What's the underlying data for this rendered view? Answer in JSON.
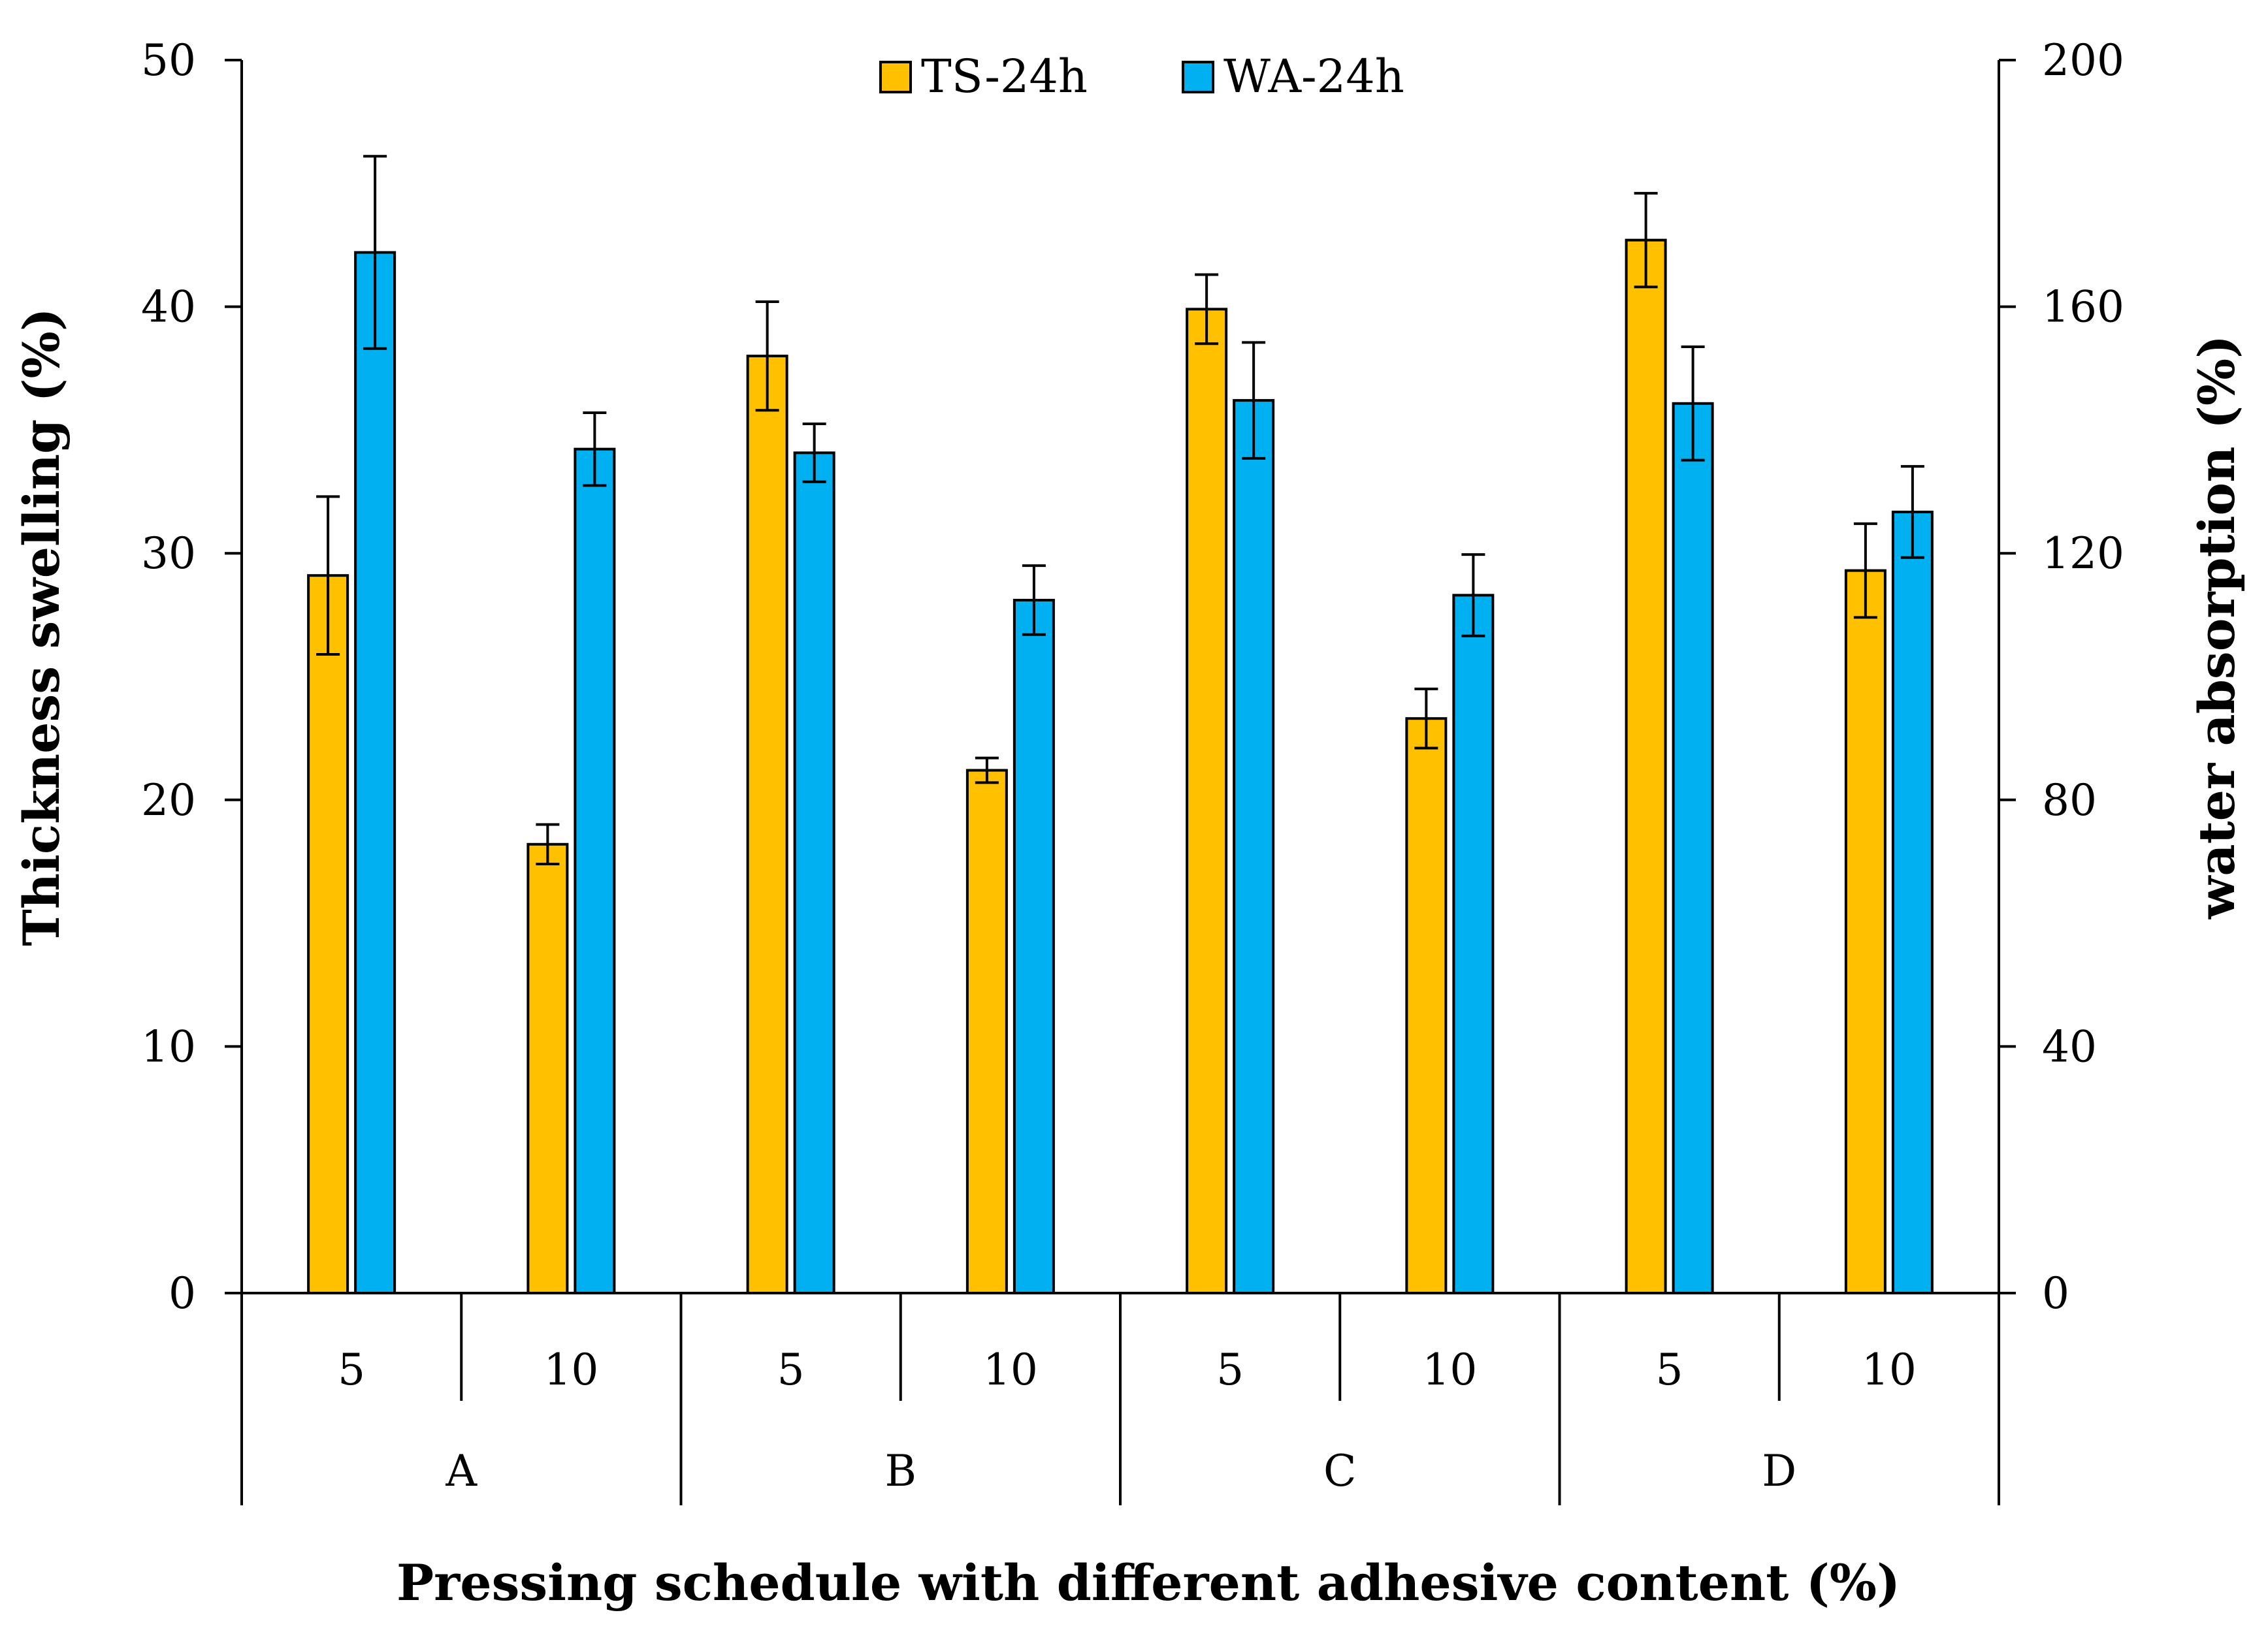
{
  "chart_data": {
    "type": "bar",
    "title": "",
    "xlabel": "Pressing schedule with different adhesive content (%)",
    "ylabel": "Thickness swelling (%)",
    "y2label": "water absorption (%)",
    "ylim": [
      0,
      50
    ],
    "y2lim": [
      0,
      200
    ],
    "yticks": [
      "0",
      "10",
      "20",
      "30",
      "40",
      "50"
    ],
    "y2ticks": [
      "0",
      "40",
      "80",
      "120",
      "160",
      "200"
    ],
    "groups": [
      "A",
      "B",
      "C",
      "D"
    ],
    "categories": [
      "5",
      "10",
      "5",
      "10",
      "5",
      "10",
      "5",
      "10"
    ],
    "legend_position": "top-center",
    "series": [
      {
        "name": "TS-24h",
        "axis": "left",
        "color": "#FFC000",
        "values": [
          29.1,
          18.2,
          38.0,
          21.2,
          39.9,
          23.3,
          42.7,
          29.3
        ],
        "errors": [
          3.2,
          0.8,
          2.2,
          0.5,
          1.4,
          1.2,
          1.9,
          1.9
        ]
      },
      {
        "name": "WA-24h",
        "axis": "right",
        "color": "#00B0F0",
        "values": [
          168.8,
          136.9,
          136.3,
          112.4,
          144.8,
          113.2,
          144.3,
          126.7
        ],
        "errors": [
          15.6,
          5.9,
          4.7,
          5.6,
          9.4,
          6.6,
          9.2,
          7.4
        ]
      }
    ]
  }
}
